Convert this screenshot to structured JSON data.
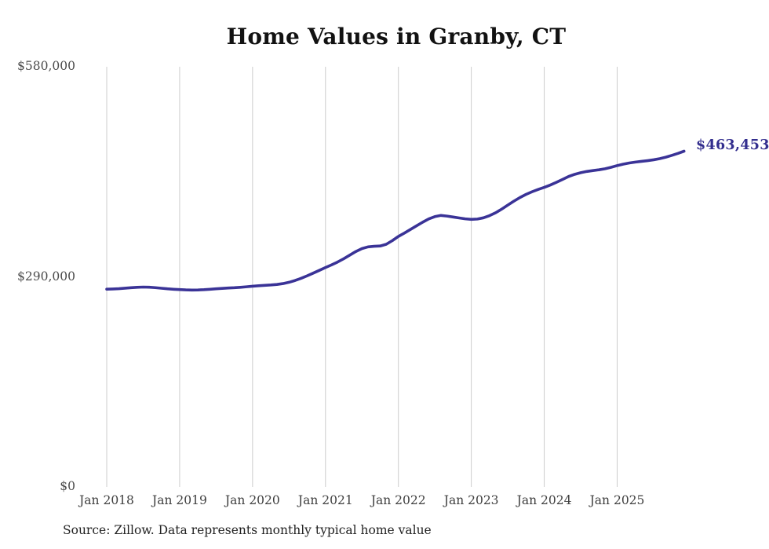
{
  "title": "Home Values in Granby, CT",
  "source_note": "Source: Zillow. Data represents monthly typical home value",
  "end_label": "$463,453",
  "colors": {
    "line": "#3a3397",
    "end_label_text": "#332e8e",
    "gridline": "#cccccc",
    "axis_text": "#4a4a4a",
    "title_text": "#121212",
    "source_text": "#222222",
    "background": "#ffffff"
  },
  "chart_data": {
    "type": "line",
    "title": "Home Values in Granby, CT",
    "xlabel": "",
    "ylabel": "",
    "legend": "none",
    "grid": "vertical-yearly",
    "ylim": [
      0,
      580000
    ],
    "y_ticks": [
      {
        "label": "$580,000",
        "value": 580000
      },
      {
        "label": "$290,000",
        "value": 290000
      },
      {
        "label": "$0",
        "value": 0
      }
    ],
    "x_tick_labels": [
      "Jan 2018",
      "Jan 2019",
      "Jan 2020",
      "Jan 2021",
      "Jan 2022",
      "Jan 2023",
      "Jan 2024",
      "Jan 2025"
    ],
    "start_month": "2018-01",
    "end_month": "2025-12",
    "frequency": "monthly",
    "last_value": 463453,
    "series": [
      {
        "name": "Typical home value",
        "values": [
          273000,
          273300,
          273700,
          274300,
          275000,
          275600,
          275900,
          275700,
          275100,
          274300,
          273500,
          272900,
          272400,
          272000,
          271800,
          271900,
          272300,
          272900,
          273500,
          274100,
          274600,
          275000,
          275600,
          276300,
          277100,
          277700,
          278300,
          278800,
          279500,
          280700,
          282500,
          285000,
          288000,
          291500,
          295200,
          299000,
          302900,
          306500,
          310500,
          315000,
          320000,
          325000,
          329000,
          331400,
          332200,
          332600,
          335000,
          340000,
          345800,
          350500,
          355500,
          360500,
          365500,
          370000,
          373200,
          374800,
          373900,
          372600,
          371300,
          370100,
          369300,
          369800,
          371500,
          374500,
          378500,
          383500,
          389000,
          394500,
          399500,
          403800,
          407500,
          410700,
          413500,
          416800,
          420500,
          424500,
          428500,
          431500,
          433800,
          435500,
          436700,
          437800,
          439200,
          441200,
          443600,
          445600,
          447200,
          448400,
          449400,
          450400,
          451600,
          453200,
          455200,
          457700,
          460400,
          463453
        ]
      }
    ]
  }
}
